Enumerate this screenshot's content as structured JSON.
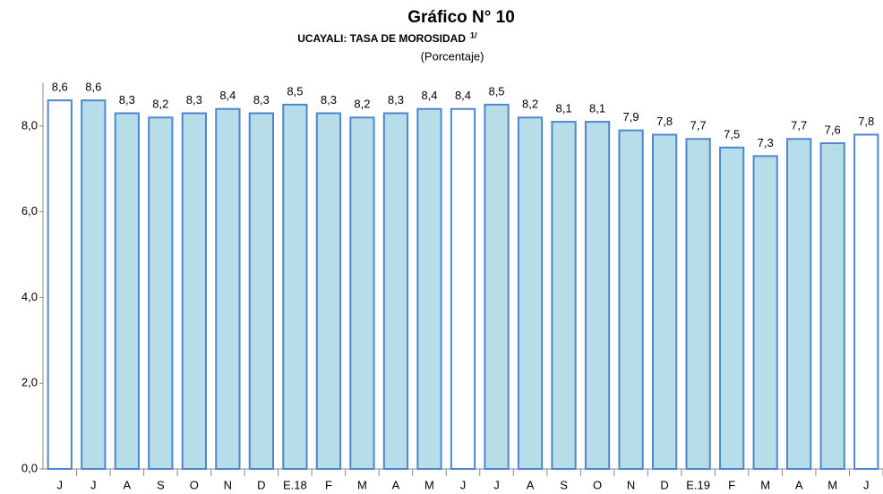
{
  "chart_data": {
    "type": "bar",
    "title": "Gráfico N° 10",
    "subtitle": "UCAYALI: TASA DE MOROSIDAD",
    "subtitle_note": "1/",
    "unit_label": "(Porcentaje)",
    "categories": [
      "J",
      "J",
      "A",
      "S",
      "O",
      "N",
      "D",
      "E.18",
      "F",
      "M",
      "A",
      "M",
      "J",
      "J",
      "A",
      "S",
      "O",
      "N",
      "D",
      "E.19",
      "F",
      "M",
      "A",
      "M",
      "J"
    ],
    "values": [
      8.6,
      8.6,
      8.3,
      8.2,
      8.3,
      8.4,
      8.3,
      8.5,
      8.3,
      8.2,
      8.3,
      8.4,
      8.4,
      8.5,
      8.2,
      8.1,
      8.1,
      7.9,
      7.8,
      7.7,
      7.5,
      7.3,
      7.7,
      7.6,
      7.8
    ],
    "value_labels": [
      "8,6",
      "8,6",
      "8,3",
      "8,2",
      "8,3",
      "8,4",
      "8,3",
      "8,5",
      "8,3",
      "8,2",
      "8,3",
      "8,4",
      "8,4",
      "8,5",
      "8,2",
      "8,1",
      "8,1",
      "7,9",
      "7,8",
      "7,7",
      "7,5",
      "7,3",
      "7,7",
      "7,6",
      "7,8"
    ],
    "colors": [
      "#ffffff",
      "#b7dde8",
      "#b7dde8",
      "#b7dde8",
      "#b7dde8",
      "#b7dde8",
      "#b7dde8",
      "#b7dde8",
      "#b7dde8",
      "#b7dde8",
      "#b7dde8",
      "#b7dde8",
      "#ffffff",
      "#b7dde8",
      "#b7dde8",
      "#b7dde8",
      "#b7dde8",
      "#b7dde8",
      "#b7dde8",
      "#b7dde8",
      "#b7dde8",
      "#b7dde8",
      "#b7dde8",
      "#b7dde8",
      "#ffffff"
    ],
    "edge_color": "#4f86d1",
    "ylim": [
      0,
      9
    ],
    "yticks": [
      {
        "value": 0,
        "label": "0,0"
      },
      {
        "value": 2,
        "label": "2,0"
      },
      {
        "value": 4,
        "label": "4,0"
      },
      {
        "value": 6,
        "label": "6,0"
      },
      {
        "value": 8,
        "label": "8,0"
      }
    ],
    "grid": false
  }
}
